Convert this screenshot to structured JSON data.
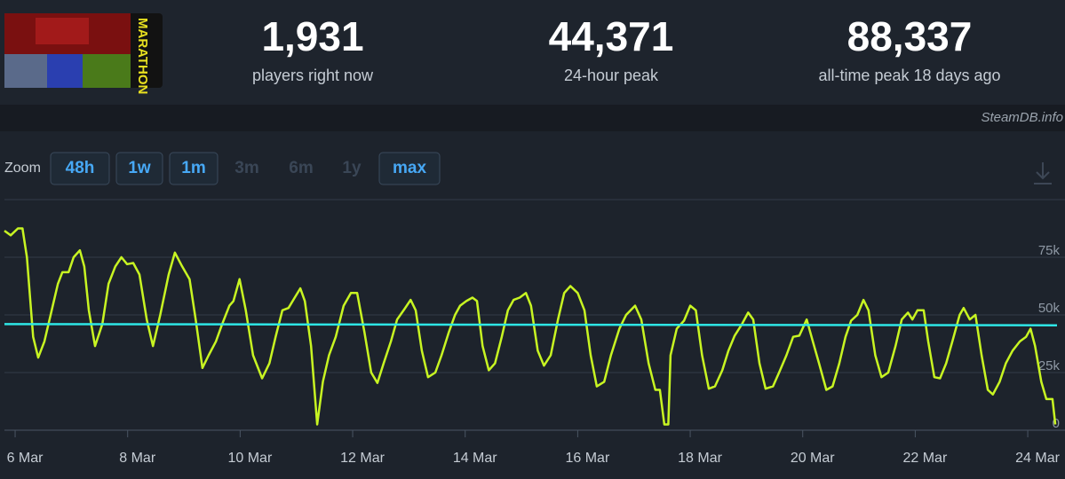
{
  "header": {
    "logo_text": "MARATHON",
    "stats": [
      {
        "value": "1,931",
        "label": "players right now"
      },
      {
        "value": "44,371",
        "label": "24-hour peak"
      },
      {
        "value": "88,337",
        "label": "all-time peak 18 days ago"
      }
    ],
    "watermark": "SteamDB.info"
  },
  "zoom": {
    "label": "Zoom",
    "buttons": [
      {
        "label": "48h",
        "enabled": true
      },
      {
        "label": "1w",
        "enabled": true
      },
      {
        "label": "1m",
        "enabled": true
      },
      {
        "label": "3m",
        "enabled": false
      },
      {
        "label": "6m",
        "enabled": false
      },
      {
        "label": "1y",
        "enabled": false
      },
      {
        "label": "max",
        "enabled": true
      }
    ]
  },
  "chart_data": {
    "type": "line",
    "xlim": [
      5.81,
      24.52
    ],
    "xticks": [
      {
        "value": 6,
        "label": "6 Mar"
      },
      {
        "value": 8,
        "label": "8 Mar"
      },
      {
        "value": 10,
        "label": "10 Mar"
      },
      {
        "value": 12,
        "label": "12 Mar"
      },
      {
        "value": 14,
        "label": "14 Mar"
      },
      {
        "value": 16,
        "label": "16 Mar"
      },
      {
        "value": 18,
        "label": "18 Mar"
      },
      {
        "value": 20,
        "label": "20 Mar"
      },
      {
        "value": 22,
        "label": "22 Mar"
      },
      {
        "value": 24,
        "label": "24 Mar"
      }
    ],
    "ylim": [
      0,
      100000
    ],
    "yticks": [
      0,
      {
        "value": 25000,
        "label": "25k"
      },
      {
        "value": 50000,
        "label": "50k"
      },
      {
        "value": 75000,
        "label": "75k"
      }
    ],
    "grid": true,
    "series": [
      {
        "color": "#c8f522",
        "x": [
          5.81,
          5.92,
          6.05,
          6.13,
          6.21,
          6.32,
          6.41,
          6.52,
          6.65,
          6.76,
          6.84,
          6.95,
          7.04,
          7.15,
          7.23,
          7.31,
          7.42,
          7.55,
          7.66,
          7.78,
          7.89,
          7.99,
          8.1,
          8.21,
          8.34,
          8.45,
          8.58,
          8.73,
          8.84,
          8.97,
          9.1,
          9.21,
          9.33,
          9.44,
          9.57,
          9.68,
          9.81,
          9.88,
          9.99,
          10.1,
          10.23,
          10.39,
          10.52,
          10.63,
          10.75,
          10.86,
          10.97,
          11.07,
          11.15,
          11.26,
          11.37,
          11.47,
          11.58,
          11.7,
          11.84,
          11.97,
          12.08,
          12.21,
          12.33,
          12.44,
          12.55,
          12.68,
          12.79,
          12.92,
          13.03,
          13.12,
          13.23,
          13.34,
          13.47,
          13.58,
          13.71,
          13.82,
          13.91,
          14.02,
          14.13,
          14.21,
          14.31,
          14.42,
          14.53,
          14.65,
          14.76,
          14.86,
          14.97,
          15.08,
          15.17,
          15.29,
          15.4,
          15.52,
          15.65,
          15.76,
          15.87,
          16.0,
          16.12,
          16.23,
          16.34,
          16.47,
          16.59,
          16.74,
          16.86,
          17.02,
          17.13,
          17.26,
          17.38,
          17.46,
          17.54,
          17.61,
          17.65,
          17.76,
          17.89,
          18.0,
          18.1,
          18.21,
          18.33,
          18.44,
          18.57,
          18.68,
          18.79,
          18.92,
          19.03,
          19.12,
          19.23,
          19.34,
          19.47,
          19.58,
          19.71,
          19.83,
          19.94,
          20.07,
          20.18,
          20.29,
          20.42,
          20.53,
          20.65,
          20.76,
          20.86,
          20.97,
          21.08,
          21.17,
          21.29,
          21.4,
          21.52,
          21.65,
          21.76,
          21.87,
          21.95,
          22.04,
          22.15,
          22.23,
          22.34,
          22.44,
          22.55,
          22.66,
          22.79,
          22.86,
          22.97,
          23.07,
          23.18,
          23.29,
          23.38,
          23.5,
          23.61,
          23.73,
          23.86,
          23.97,
          24.05,
          24.13,
          24.24,
          24.33,
          24.44,
          24.49
        ],
        "values": [
          86500,
          84500,
          87500,
          87500,
          75000,
          40500,
          31500,
          38500,
          52000,
          63500,
          68500,
          68500,
          75000,
          78000,
          71000,
          52000,
          36500,
          46000,
          63500,
          71000,
          75000,
          72000,
          72500,
          67500,
          48000,
          36500,
          50000,
          67500,
          77000,
          71000,
          65500,
          48000,
          27000,
          32500,
          38500,
          46000,
          54000,
          56000,
          65500,
          52000,
          32500,
          22500,
          29000,
          40500,
          52000,
          53000,
          57500,
          61500,
          56000,
          36500,
          2500,
          21000,
          32500,
          40500,
          54000,
          59500,
          59500,
          42500,
          25000,
          20500,
          29000,
          38500,
          48000,
          52500,
          56500,
          52000,
          34500,
          23000,
          25000,
          32500,
          42500,
          50000,
          54000,
          56000,
          57500,
          56000,
          36500,
          26000,
          29000,
          40500,
          52000,
          56500,
          57500,
          59500,
          54000,
          34500,
          28000,
          32500,
          48000,
          59500,
          62500,
          59500,
          52000,
          32500,
          19000,
          21000,
          32500,
          44000,
          50000,
          54000,
          48000,
          29000,
          17500,
          17500,
          2500,
          2500,
          32500,
          44000,
          47500,
          54000,
          52000,
          32500,
          18000,
          19000,
          26000,
          34500,
          41000,
          46000,
          51000,
          48000,
          29000,
          18000,
          19000,
          25000,
          32500,
          40500,
          41000,
          48000,
          38500,
          29000,
          17500,
          19000,
          29000,
          40500,
          47500,
          50000,
          56500,
          52000,
          32500,
          23000,
          25000,
          36500,
          48000,
          51000,
          48000,
          52000,
          52000,
          38500,
          23000,
          22500,
          29000,
          38500,
          50000,
          53000,
          48000,
          50000,
          32500,
          17500,
          15500,
          21000,
          29000,
          34500,
          38500,
          40500,
          44000,
          36500,
          21000,
          13500,
          13500,
          2500
        ]
      },
      {
        "color": "#2ee6e6",
        "x": [
          5.81,
          24.52
        ],
        "values": [
          46000,
          45500
        ]
      }
    ]
  }
}
